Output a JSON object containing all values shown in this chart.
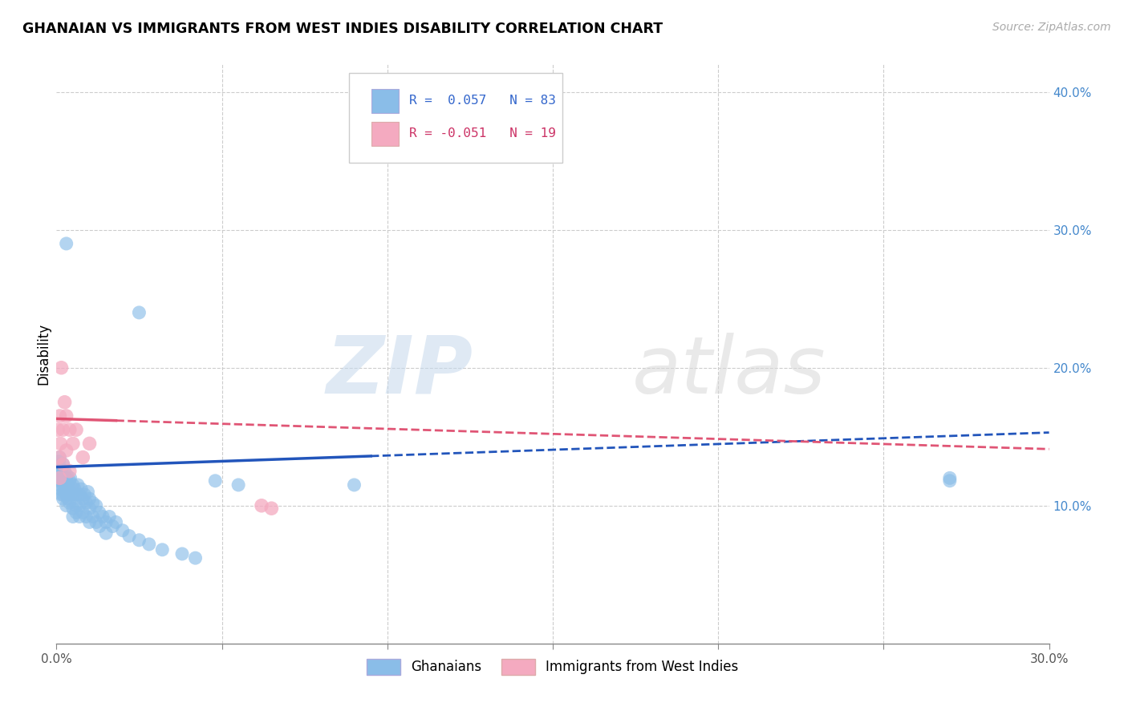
{
  "title": "GHANAIAN VS IMMIGRANTS FROM WEST INDIES DISABILITY CORRELATION CHART",
  "source": "Source: ZipAtlas.com",
  "ylabel": "Disability",
  "xlim": [
    0.0,
    0.3
  ],
  "ylim": [
    0.0,
    0.42
  ],
  "background_color": "#ffffff",
  "grid_color": "#cccccc",
  "blue_color": "#8abde8",
  "pink_color": "#f4aac0",
  "blue_line_color": "#2255bb",
  "pink_line_color": "#e05575",
  "legend_r_blue": "R =  0.057",
  "legend_n_blue": "N = 83",
  "legend_r_pink": "R = -0.051",
  "legend_n_pink": "N = 19",
  "legend_label_blue": "Ghanaians",
  "legend_label_pink": "Immigrants from West Indies",
  "watermark_zip": "ZIP",
  "watermark_atlas": "atlas",
  "blue_x": [
    0.0005,
    0.0005,
    0.0005,
    0.0008,
    0.0008,
    0.001,
    0.001,
    0.001,
    0.001,
    0.001,
    0.0012,
    0.0012,
    0.0015,
    0.0015,
    0.0018,
    0.002,
    0.002,
    0.002,
    0.002,
    0.002,
    0.0022,
    0.0025,
    0.0025,
    0.003,
    0.003,
    0.003,
    0.003,
    0.0032,
    0.0035,
    0.0035,
    0.004,
    0.004,
    0.004,
    0.0042,
    0.0045,
    0.005,
    0.005,
    0.005,
    0.005,
    0.0055,
    0.006,
    0.006,
    0.006,
    0.0065,
    0.007,
    0.007,
    0.007,
    0.0075,
    0.008,
    0.008,
    0.0085,
    0.009,
    0.009,
    0.0095,
    0.01,
    0.01,
    0.01,
    0.011,
    0.011,
    0.012,
    0.012,
    0.013,
    0.013,
    0.014,
    0.015,
    0.015,
    0.016,
    0.017,
    0.018,
    0.02,
    0.022,
    0.025,
    0.028,
    0.032,
    0.038,
    0.042,
    0.048,
    0.055,
    0.003,
    0.025,
    0.09,
    0.27,
    0.27
  ],
  "blue_y": [
    0.13,
    0.125,
    0.128,
    0.132,
    0.122,
    0.135,
    0.128,
    0.122,
    0.118,
    0.115,
    0.12,
    0.112,
    0.125,
    0.108,
    0.118,
    0.13,
    0.122,
    0.115,
    0.108,
    0.105,
    0.118,
    0.125,
    0.11,
    0.12,
    0.115,
    0.108,
    0.1,
    0.122,
    0.115,
    0.105,
    0.118,
    0.11,
    0.102,
    0.12,
    0.108,
    0.115,
    0.108,
    0.098,
    0.092,
    0.112,
    0.108,
    0.1,
    0.095,
    0.115,
    0.108,
    0.1,
    0.092,
    0.112,
    0.105,
    0.095,
    0.108,
    0.102,
    0.092,
    0.11,
    0.105,
    0.098,
    0.088,
    0.102,
    0.092,
    0.1,
    0.088,
    0.095,
    0.085,
    0.092,
    0.088,
    0.08,
    0.092,
    0.085,
    0.088,
    0.082,
    0.078,
    0.075,
    0.072,
    0.068,
    0.065,
    0.062,
    0.118,
    0.115,
    0.29,
    0.24,
    0.115,
    0.12,
    0.118
  ],
  "pink_x": [
    0.0005,
    0.0008,
    0.001,
    0.001,
    0.0012,
    0.0015,
    0.002,
    0.002,
    0.0025,
    0.003,
    0.003,
    0.004,
    0.004,
    0.005,
    0.006,
    0.008,
    0.01,
    0.062,
    0.065
  ],
  "pink_y": [
    0.155,
    0.135,
    0.165,
    0.12,
    0.145,
    0.2,
    0.155,
    0.13,
    0.175,
    0.165,
    0.14,
    0.155,
    0.125,
    0.145,
    0.155,
    0.135,
    0.145,
    0.1,
    0.098
  ],
  "blue_line_x0": 0.0,
  "blue_line_x_solid_end": 0.095,
  "blue_line_x1": 0.3,
  "blue_line_y0": 0.128,
  "blue_line_y1": 0.153,
  "pink_line_x0": 0.0,
  "pink_line_x_solid_end": 0.018,
  "pink_line_x1": 0.3,
  "pink_line_y0": 0.163,
  "pink_line_y1": 0.141
}
